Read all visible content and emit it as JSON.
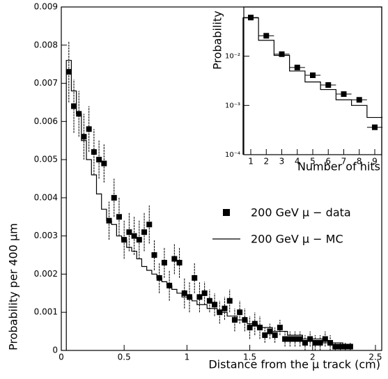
{
  "chart_data": [
    {
      "type": "scatter-step",
      "xlabel": "Distance from the μ track (cm)",
      "ylabel": "Probability per 400 μm",
      "xlim": [
        0,
        2.55
      ],
      "ylim": [
        0,
        0.009
      ],
      "xticks": [
        0,
        0.5,
        1,
        1.5,
        2,
        2.5
      ],
      "yticks": [
        0,
        0.001,
        0.002,
        0.003,
        0.004,
        0.005,
        0.006,
        0.007,
        0.008,
        0.009
      ],
      "x": [
        0.06,
        0.1,
        0.14,
        0.18,
        0.22,
        0.26,
        0.3,
        0.34,
        0.38,
        0.42,
        0.46,
        0.5,
        0.54,
        0.58,
        0.62,
        0.66,
        0.7,
        0.74,
        0.78,
        0.82,
        0.86,
        0.9,
        0.94,
        0.98,
        1.02,
        1.06,
        1.1,
        1.14,
        1.18,
        1.22,
        1.26,
        1.3,
        1.34,
        1.38,
        1.42,
        1.46,
        1.5,
        1.54,
        1.58,
        1.62,
        1.66,
        1.7,
        1.74,
        1.78,
        1.82,
        1.86,
        1.9,
        1.94,
        1.98,
        2.02,
        2.06,
        2.1,
        2.14,
        2.18,
        2.22,
        2.26,
        2.3
      ],
      "series": [
        {
          "name": "200 GeV μ − data",
          "color": "#000000",
          "style": "points",
          "values": [
            0.0073,
            0.0064,
            0.0062,
            0.0056,
            0.0058,
            0.0052,
            0.005,
            0.0049,
            0.0034,
            0.004,
            0.0035,
            0.0029,
            0.0031,
            0.003,
            0.0029,
            0.0031,
            0.0033,
            0.0025,
            0.0019,
            0.0023,
            0.0017,
            0.0024,
            0.0023,
            0.0015,
            0.0014,
            0.0019,
            0.0014,
            0.0015,
            0.0013,
            0.0012,
            0.001,
            0.0011,
            0.0013,
            0.0008,
            0.001,
            0.0008,
            0.0006,
            0.0007,
            0.0006,
            0.0004,
            0.0005,
            0.0004,
            0.0006,
            0.0003,
            0.0003,
            0.0003,
            0.0003,
            0.0002,
            0.0003,
            0.0002,
            0.0002,
            0.0003,
            0.0002,
            0.0001,
            0.0001,
            0.0001,
            0.0001
          ],
          "errors": [
            0.0008,
            0.0007,
            0.0006,
            0.0006,
            0.0006,
            0.0006,
            0.0005,
            0.0005,
            0.0005,
            0.0005,
            0.0005,
            0.0005,
            0.0005,
            0.0005,
            0.0005,
            0.0005,
            0.0005,
            0.0004,
            0.0004,
            0.0004,
            0.0004,
            0.0004,
            0.0004,
            0.0004,
            0.0004,
            0.0004,
            0.0004,
            0.0003,
            0.0003,
            0.0003,
            0.0003,
            0.0003,
            0.0003,
            0.0003,
            0.0003,
            0.0003,
            0.0003,
            0.0003,
            0.0003,
            0.0002,
            0.0002,
            0.0002,
            0.0002,
            0.0002,
            0.0002,
            0.0002,
            0.0002,
            0.0002,
            0.0002,
            0.0002,
            0.0002,
            0.0002,
            0.0002,
            0.0001,
            0.0001,
            0.0001,
            0.0001
          ]
        },
        {
          "name": "200 GeV μ − MC",
          "color": "#000000",
          "style": "step",
          "values": [
            0.0076,
            0.0068,
            0.0062,
            0.0055,
            0.005,
            0.0046,
            0.0041,
            0.0037,
            0.0034,
            0.0033,
            0.003,
            0.0029,
            0.0027,
            0.0026,
            0.0024,
            0.0022,
            0.0021,
            0.002,
            0.0019,
            0.0018,
            0.0017,
            0.0016,
            0.0015,
            0.0014,
            0.0014,
            0.0013,
            0.0012,
            0.0012,
            0.0011,
            0.0011,
            0.001,
            0.001,
            0.0009,
            0.0009,
            0.0008,
            0.0008,
            0.0007,
            0.0007,
            0.0006,
            0.0006,
            0.0006,
            0.0005,
            0.0005,
            0.0005,
            0.0004,
            0.0004,
            0.0004,
            0.0003,
            0.0003,
            0.0003,
            0.0003,
            0.0002,
            0.0002,
            0.0002,
            0.0002,
            0.0001,
            0.0001
          ]
        }
      ]
    },
    {
      "type": "scatter-step",
      "xlabel": "Number of hits",
      "ylabel": "Probability",
      "log_y": true,
      "xlim": [
        0.55,
        9.45
      ],
      "ylim": [
        0.0001,
        0.1
      ],
      "xticks": [
        1,
        2,
        3,
        4,
        5,
        6,
        7,
        8,
        9
      ],
      "yticks": [
        {
          "value": 0.0001,
          "label": "10⁻⁴"
        },
        {
          "value": 0.001,
          "label": "10⁻³"
        },
        {
          "value": 0.01,
          "label": "10⁻²"
        }
      ],
      "x": [
        1,
        2,
        3,
        4,
        5,
        6,
        7,
        8,
        9
      ],
      "series": [
        {
          "color": "#000000",
          "style": "points",
          "values": [
            0.061,
            0.026,
            0.011,
            0.0059,
            0.0041,
            0.0026,
            0.0017,
            0.0013,
            0.00036
          ]
        },
        {
          "color": "#000000",
          "style": "step",
          "values": [
            0.06,
            0.021,
            0.0104,
            0.005,
            0.003,
            0.0021,
            0.0013,
            0.001,
            0.00057
          ]
        }
      ]
    }
  ]
}
